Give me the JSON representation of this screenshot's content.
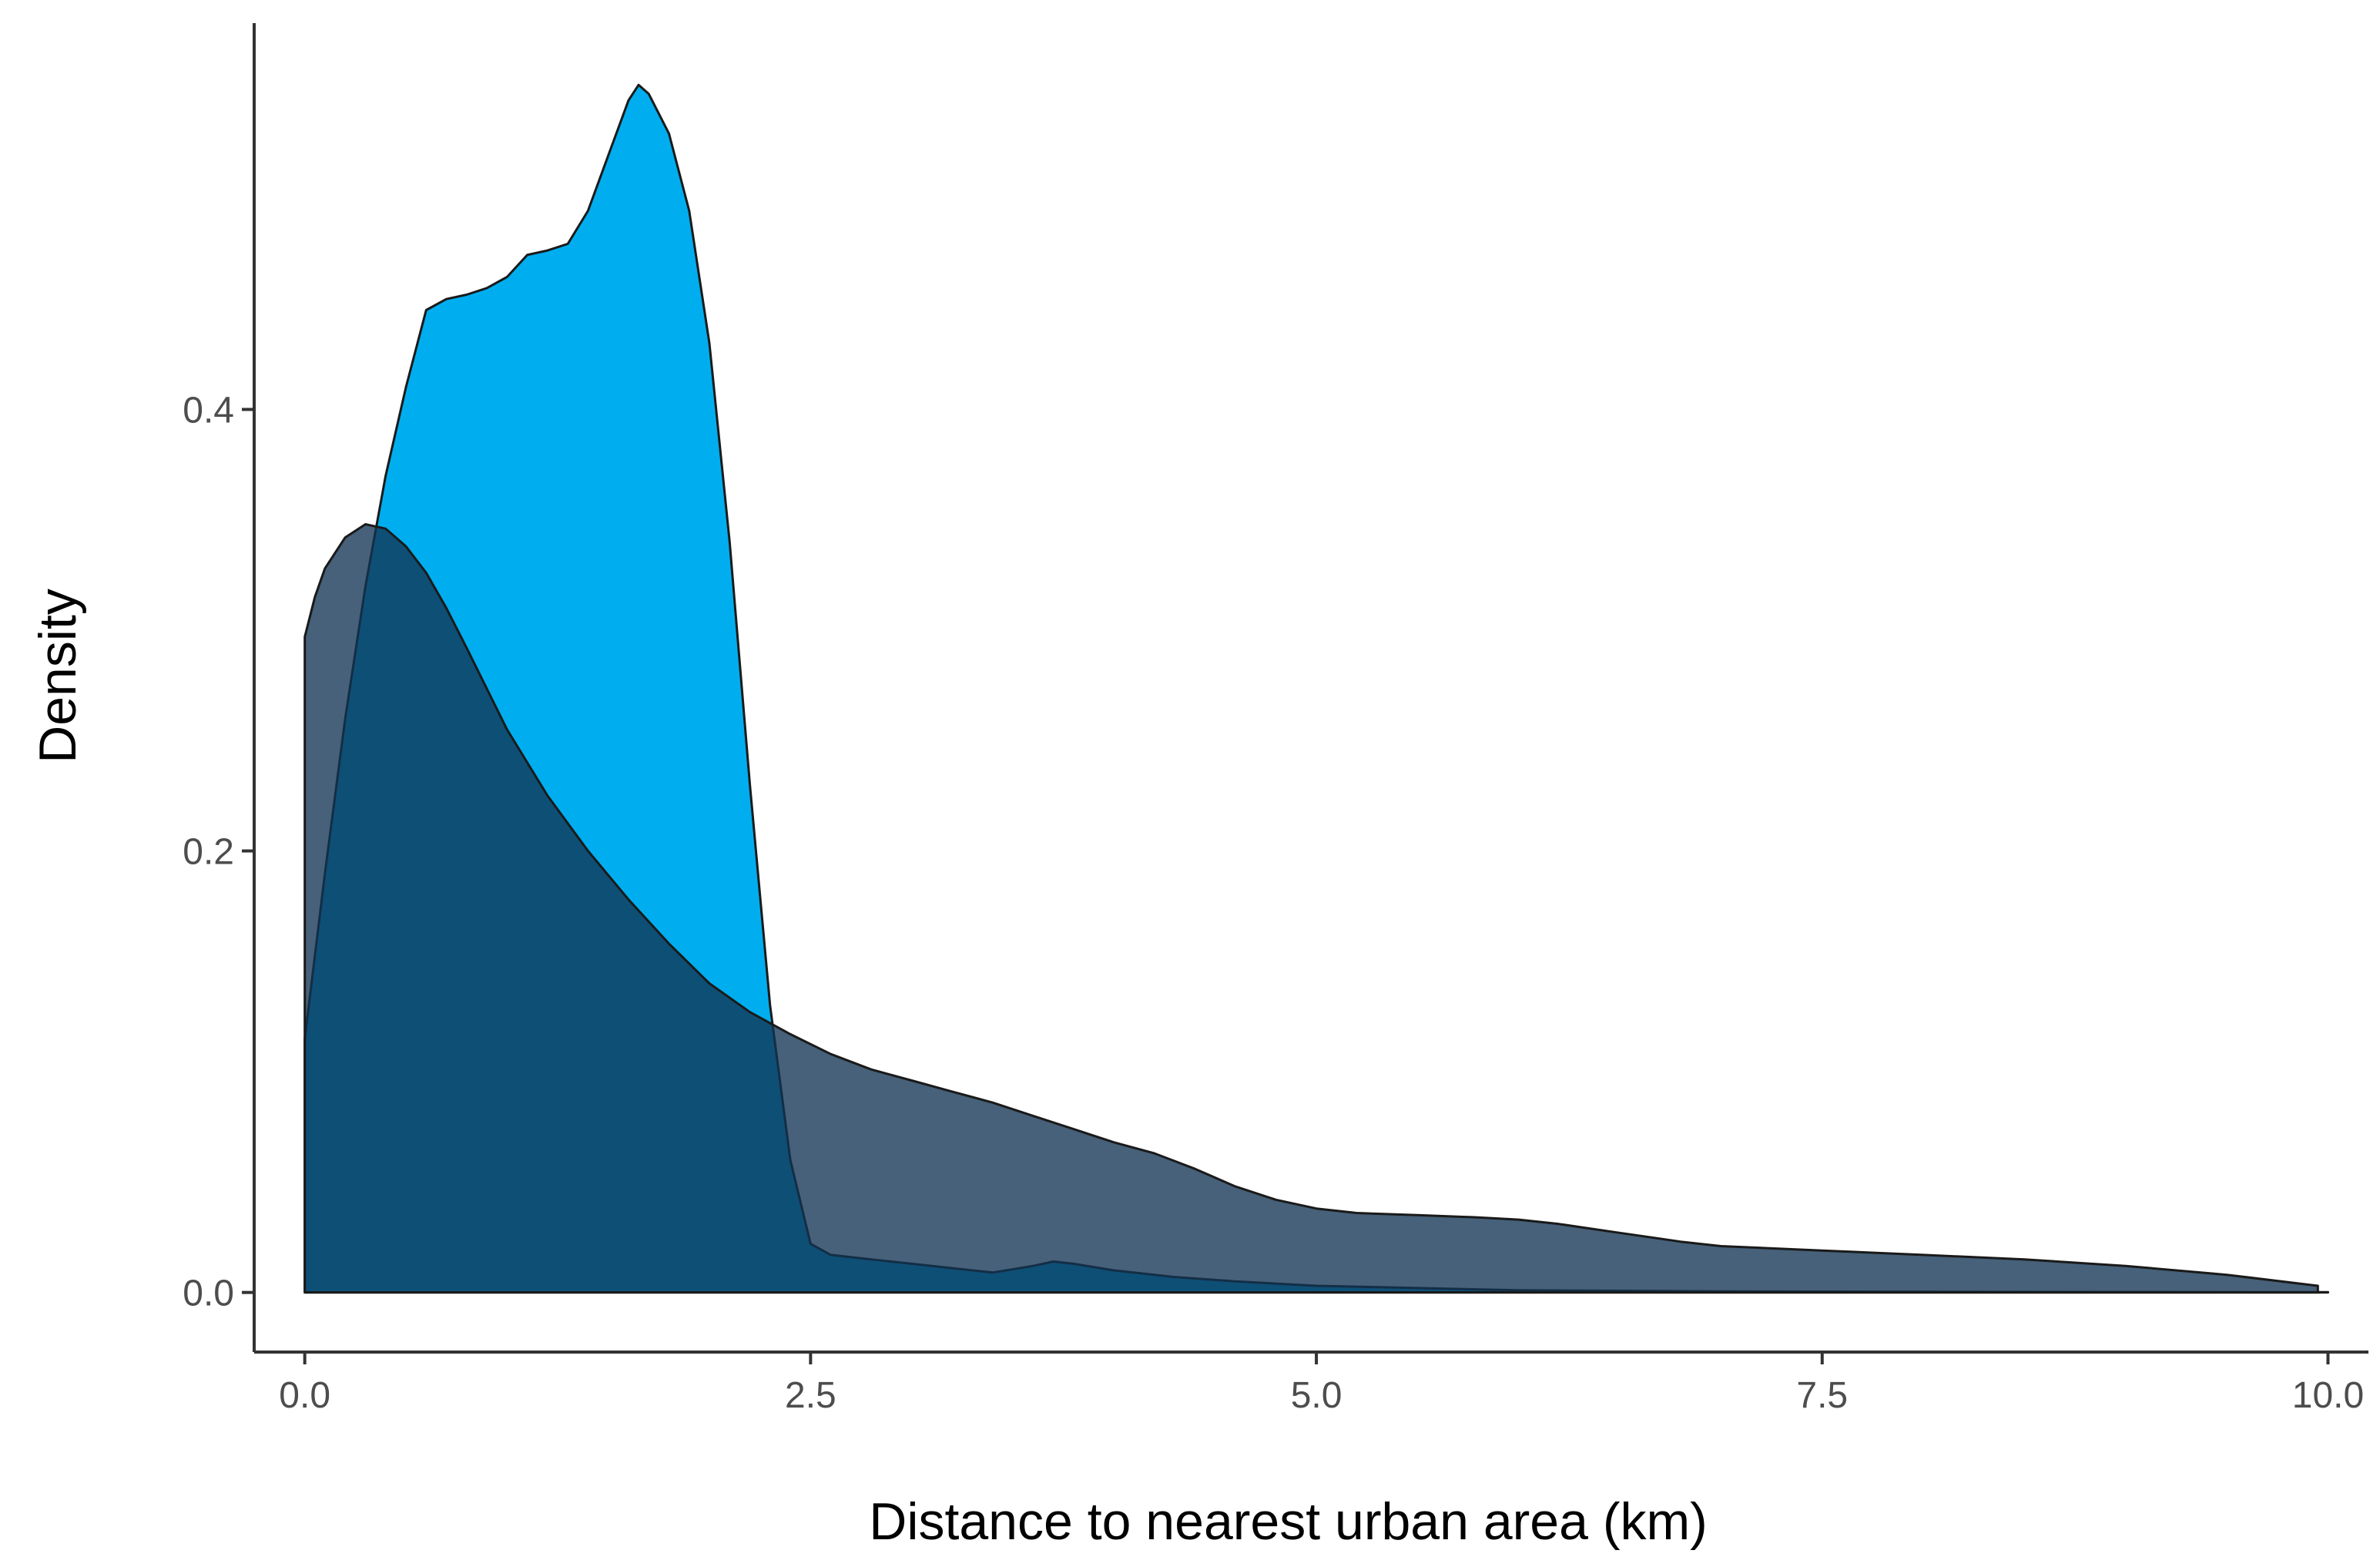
{
  "chart_data": {
    "type": "area",
    "title": "",
    "xlabel": "Distance to nearest urban area (km)",
    "ylabel": "Density",
    "xlim": [
      -0.25,
      10.2
    ],
    "ylim": [
      -0.027,
      0.575
    ],
    "xticks": [
      0.0,
      2.5,
      5.0,
      7.5,
      10.0
    ],
    "xtick_labels": [
      "0.0",
      "2.5",
      "5.0",
      "7.5",
      "10.0"
    ],
    "yticks": [
      0.0,
      0.2,
      0.4
    ],
    "ytick_labels": [
      "0.0",
      "0.2",
      "0.4"
    ],
    "grid": false,
    "legend": "none",
    "series": [
      {
        "color": "#00aeef",
        "opacity": 1.0,
        "points": [
          [
            0.0,
            0.115
          ],
          [
            0.1,
            0.19
          ],
          [
            0.2,
            0.26
          ],
          [
            0.3,
            0.32
          ],
          [
            0.4,
            0.37
          ],
          [
            0.5,
            0.41
          ],
          [
            0.6,
            0.445
          ],
          [
            0.7,
            0.45
          ],
          [
            0.8,
            0.452
          ],
          [
            0.9,
            0.455
          ],
          [
            1.0,
            0.46
          ],
          [
            1.1,
            0.47
          ],
          [
            1.2,
            0.472
          ],
          [
            1.3,
            0.475
          ],
          [
            1.4,
            0.49
          ],
          [
            1.5,
            0.515
          ],
          [
            1.6,
            0.54
          ],
          [
            1.65,
            0.547
          ],
          [
            1.7,
            0.543
          ],
          [
            1.8,
            0.525
          ],
          [
            1.9,
            0.49
          ],
          [
            2.0,
            0.43
          ],
          [
            2.1,
            0.34
          ],
          [
            2.2,
            0.23
          ],
          [
            2.3,
            0.13
          ],
          [
            2.4,
            0.06
          ],
          [
            2.5,
            0.022
          ],
          [
            2.6,
            0.017
          ],
          [
            2.8,
            0.015
          ],
          [
            3.0,
            0.013
          ],
          [
            3.2,
            0.011
          ],
          [
            3.4,
            0.009
          ],
          [
            3.6,
            0.012
          ],
          [
            3.7,
            0.014
          ],
          [
            3.8,
            0.013
          ],
          [
            4.0,
            0.01
          ],
          [
            4.3,
            0.007
          ],
          [
            4.6,
            0.005
          ],
          [
            5.0,
            0.003
          ],
          [
            5.5,
            0.002
          ],
          [
            6.0,
            0.001
          ],
          [
            7.0,
            0.0005
          ],
          [
            8.0,
            0.0003
          ],
          [
            9.0,
            0.0002
          ],
          [
            10.0,
            0.0001
          ]
        ]
      },
      {
        "color": "#123553",
        "opacity": 0.78,
        "points": [
          [
            0.0,
            0.297
          ],
          [
            0.05,
            0.315
          ],
          [
            0.1,
            0.328
          ],
          [
            0.2,
            0.342
          ],
          [
            0.3,
            0.348
          ],
          [
            0.4,
            0.346
          ],
          [
            0.5,
            0.338
          ],
          [
            0.6,
            0.326
          ],
          [
            0.7,
            0.31
          ],
          [
            0.8,
            0.292
          ],
          [
            1.0,
            0.255
          ],
          [
            1.2,
            0.225
          ],
          [
            1.4,
            0.2
          ],
          [
            1.6,
            0.178
          ],
          [
            1.8,
            0.158
          ],
          [
            2.0,
            0.14
          ],
          [
            2.2,
            0.127
          ],
          [
            2.4,
            0.117
          ],
          [
            2.6,
            0.108
          ],
          [
            2.8,
            0.101
          ],
          [
            3.0,
            0.096
          ],
          [
            3.2,
            0.091
          ],
          [
            3.4,
            0.086
          ],
          [
            3.6,
            0.08
          ],
          [
            3.8,
            0.074
          ],
          [
            4.0,
            0.068
          ],
          [
            4.2,
            0.063
          ],
          [
            4.4,
            0.056
          ],
          [
            4.6,
            0.048
          ],
          [
            4.8,
            0.042
          ],
          [
            5.0,
            0.038
          ],
          [
            5.2,
            0.036
          ],
          [
            5.5,
            0.035
          ],
          [
            5.8,
            0.034
          ],
          [
            6.0,
            0.033
          ],
          [
            6.2,
            0.031
          ],
          [
            6.5,
            0.027
          ],
          [
            6.8,
            0.023
          ],
          [
            7.0,
            0.021
          ],
          [
            7.5,
            0.019
          ],
          [
            8.0,
            0.017
          ],
          [
            8.5,
            0.015
          ],
          [
            9.0,
            0.012
          ],
          [
            9.5,
            0.008
          ],
          [
            9.95,
            0.003
          ]
        ]
      }
    ]
  }
}
